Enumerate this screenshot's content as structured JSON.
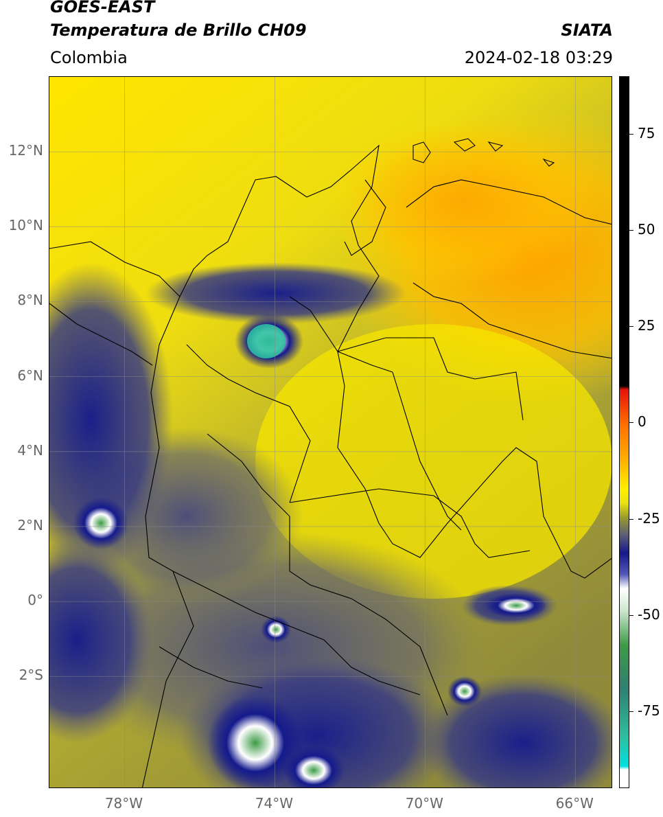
{
  "header": {
    "line1": "GOES-EAST",
    "line2": "Temperatura de Brillo CH09",
    "region": "Colombia",
    "brand": "SIATA",
    "timestamp": "2024-02-18 03:29"
  },
  "map": {
    "extent": {
      "lon_min": -80,
      "lon_max": -65,
      "lat_min": -5,
      "lat_max": 14
    },
    "lat_ticks": [
      {
        "value": 12,
        "label": "12°N"
      },
      {
        "value": 10,
        "label": "10°N"
      },
      {
        "value": 8,
        "label": "8°N"
      },
      {
        "value": 6,
        "label": "6°N"
      },
      {
        "value": 4,
        "label": "4°N"
      },
      {
        "value": 2,
        "label": "2°N"
      },
      {
        "value": 0,
        "label": "0°"
      },
      {
        "value": -2,
        "label": "2°S"
      }
    ],
    "lon_ticks": [
      {
        "value": -78,
        "label": "78°W"
      },
      {
        "value": -74,
        "label": "74°W"
      },
      {
        "value": -70,
        "label": "70°W"
      },
      {
        "value": -66,
        "label": "66°W"
      }
    ]
  },
  "colorbar": {
    "vmin": -95,
    "vmax": 90,
    "ticks": [
      {
        "value": 75,
        "label": "75"
      },
      {
        "value": 50,
        "label": "50"
      },
      {
        "value": 25,
        "label": "25"
      },
      {
        "value": 0,
        "label": "0"
      },
      {
        "value": -25,
        "label": "-25"
      },
      {
        "value": -50,
        "label": "-50"
      },
      {
        "value": -75,
        "label": "-75"
      }
    ]
  },
  "colors": {
    "warm_orange": "#ffa000",
    "yellow": "#fff000",
    "olive": "#9a9a2c",
    "slate": "#5c5c78",
    "navy": "#141a8c",
    "green": "#3c9b46",
    "teal": "#2ebfa0"
  }
}
